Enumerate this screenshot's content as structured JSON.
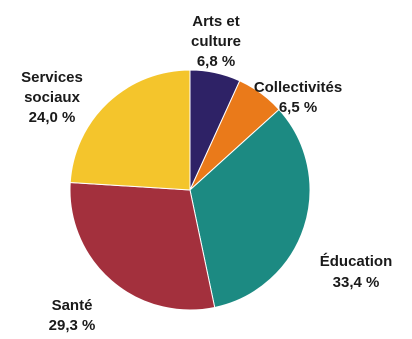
{
  "chart_data": {
    "type": "pie",
    "title": "",
    "slices": [
      {
        "label_lines": [
          "Arts et",
          "culture"
        ],
        "value_text": "6,8 %",
        "value": 6.8,
        "color": "#2e2266"
      },
      {
        "label_lines": [
          "Collectivités"
        ],
        "value_text": "6,5 %",
        "value": 6.5,
        "color": "#ea7a1a"
      },
      {
        "label_lines": [
          "Éducation"
        ],
        "value_text": "33,4 %",
        "value": 33.4,
        "color": "#1c8a82"
      },
      {
        "label_lines": [
          "Santé"
        ],
        "value_text": "29,3 %",
        "value": 29.3,
        "color": "#a3303d"
      },
      {
        "label_lines": [
          "Services",
          "sociaux"
        ],
        "value_text": "24,0 %",
        "value": 24.0,
        "color": "#f4c52c"
      }
    ]
  }
}
